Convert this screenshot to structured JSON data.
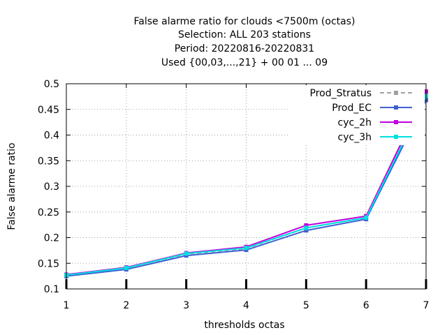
{
  "chart_data": {
    "type": "line",
    "title_lines": [
      "False alarme ratio  for clouds <7500m (octas)",
      "Selection: ALL    203 stations",
      "Period: 20220816-20220831",
      "Used {00,03,...,21} + 00 01 ... 09"
    ],
    "xlabel": "thresholds octas",
    "ylabel": "False alarme ratio",
    "x": [
      1,
      2,
      3,
      4,
      5,
      6,
      7
    ],
    "xlim": [
      1,
      7
    ],
    "ylim": [
      0.1,
      0.5
    ],
    "xticks": [
      "1",
      "2",
      "3",
      "4",
      "5",
      "6",
      "7"
    ],
    "yticks": [
      "0.1",
      "0.15",
      "0.2",
      "0.25",
      "0.3",
      "0.35",
      "0.4",
      "0.45",
      "0.5"
    ],
    "grid": true,
    "legend_position": "top-right",
    "series": [
      {
        "name": "Prod_Stratus",
        "color": "#a0a0a0",
        "dashed": true,
        "values": [
          0.127,
          0.141,
          0.168,
          0.179,
          0.219,
          0.239,
          0.477
        ]
      },
      {
        "name": "Prod_EC",
        "color": "#3f5fd0",
        "dashed": false,
        "values": [
          0.125,
          0.138,
          0.165,
          0.176,
          0.214,
          0.236,
          0.468
        ]
      },
      {
        "name": "cyc_2h",
        "color": "#c000e0",
        "dashed": false,
        "values": [
          0.128,
          0.142,
          0.17,
          0.182,
          0.224,
          0.242,
          0.485
        ]
      },
      {
        "name": "cyc_3h",
        "color": "#00e0e0",
        "dashed": false,
        "values": [
          0.127,
          0.141,
          0.169,
          0.18,
          0.219,
          0.239,
          0.476
        ]
      }
    ]
  }
}
